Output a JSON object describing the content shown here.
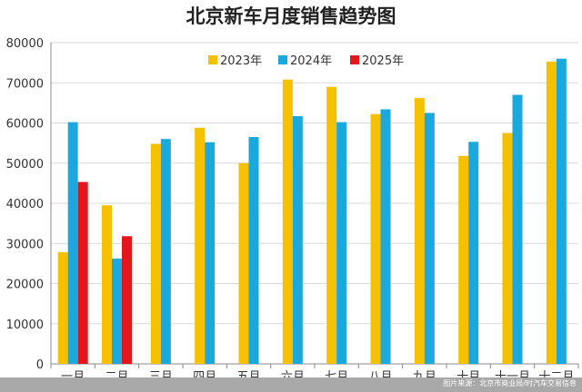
{
  "chart_data": {
    "type": "bar",
    "title": "北京新车月度销售趋势图",
    "categories": [
      "一月",
      "二月",
      "三月",
      "四月",
      "五月",
      "六月",
      "七月",
      "八月",
      "九月",
      "十月",
      "十一月",
      "十二月"
    ],
    "series": [
      {
        "name": "2023年",
        "color": "#F5C000",
        "values": [
          27800,
          39500,
          54800,
          58800,
          50000,
          70800,
          69000,
          62200,
          66200,
          51800,
          57500,
          75300
        ]
      },
      {
        "name": "2024年",
        "color": "#1BA8DC",
        "values": [
          60200,
          26200,
          56000,
          55200,
          56500,
          61700,
          60200,
          63400,
          62500,
          55300,
          67000,
          76000
        ]
      },
      {
        "name": "2025年",
        "color": "#E3161D",
        "values": [
          45300,
          31800,
          null,
          null,
          null,
          null,
          null,
          null,
          null,
          null,
          null,
          null
        ]
      }
    ],
    "yticks": [
      "0",
      "10000",
      "20000",
      "30000",
      "40000",
      "50000",
      "60000",
      "70000",
      "80000"
    ],
    "ylim": [
      0,
      80000
    ],
    "grid": true,
    "legend_position": "top"
  },
  "watermark": "图片来源：北京市商业局/时汽车交易信息"
}
